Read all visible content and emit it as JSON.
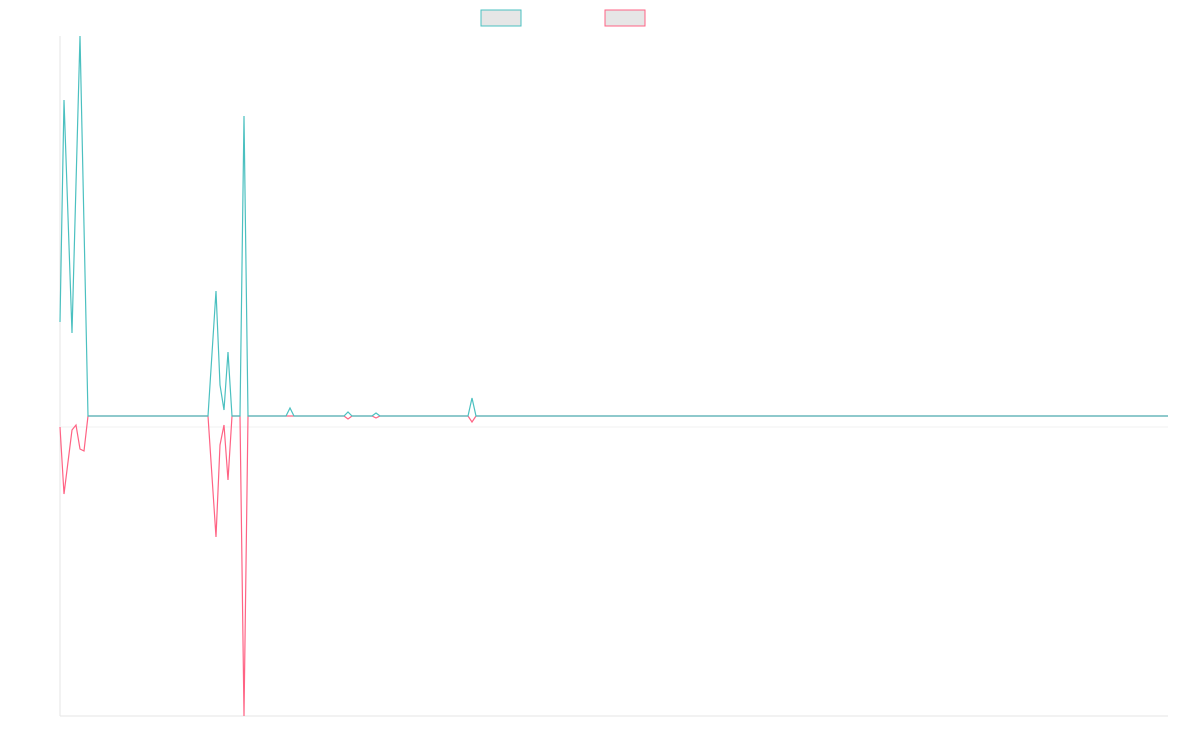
{
  "chart_data": {
    "type": "line",
    "legend": "top",
    "x": [
      0,
      1,
      3,
      4,
      5,
      6,
      7,
      37,
      39,
      40,
      41,
      42,
      43,
      45,
      46,
      47,
      56.5,
      57.5,
      58.5,
      71,
      72,
      73,
      78,
      79,
      80,
      102,
      103,
      104,
      277
    ],
    "xlim": [
      0,
      277
    ],
    "ylim": [
      -300,
      380
    ],
    "series": [
      {
        "color": "#4bc0c0",
        "values": [
          94,
          316,
          83,
          232,
          380,
          190,
          0,
          0,
          125,
          31,
          6,
          64,
          0,
          0,
          300,
          0,
          0,
          8,
          0,
          0,
          4,
          0,
          0,
          3,
          0,
          0,
          18,
          0,
          0
        ]
      },
      {
        "color": "#ff6384",
        "values": [
          -11,
          -78,
          -14,
          -9,
          -33,
          -35,
          0,
          0,
          -121,
          -29,
          -9,
          -64,
          0,
          0,
          -300,
          0,
          0,
          0,
          0,
          0,
          -3,
          0,
          0,
          -2,
          0,
          0,
          -6,
          0,
          0
        ]
      }
    ]
  }
}
